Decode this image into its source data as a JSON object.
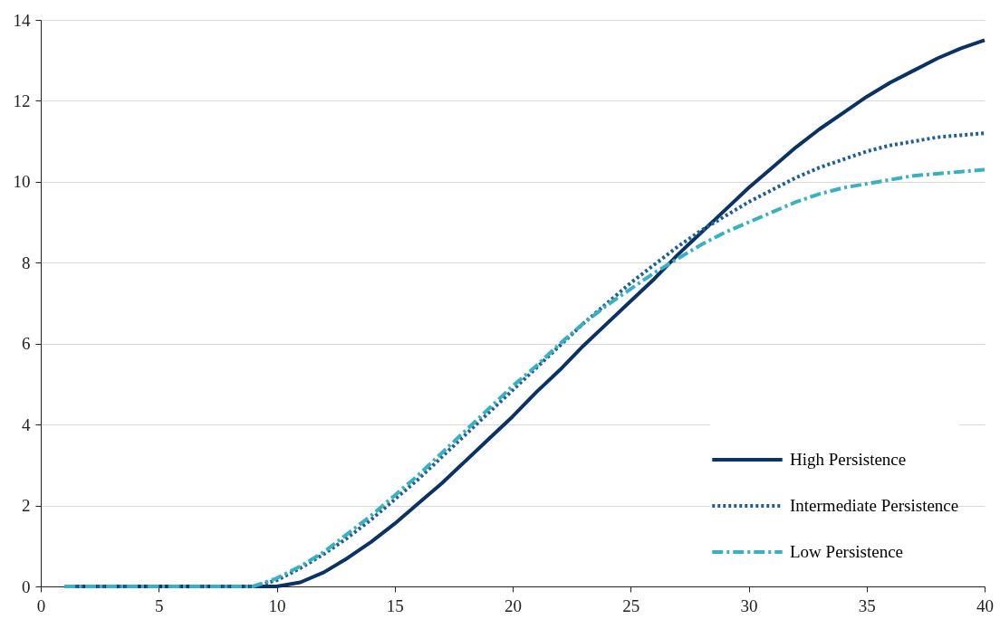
{
  "chart_data": {
    "type": "line",
    "x": [
      1,
      2,
      3,
      4,
      5,
      6,
      7,
      8,
      9,
      10,
      11,
      12,
      13,
      14,
      15,
      16,
      17,
      18,
      19,
      20,
      21,
      22,
      23,
      24,
      25,
      26,
      27,
      28,
      29,
      30,
      31,
      32,
      33,
      34,
      35,
      36,
      37,
      38,
      39,
      40
    ],
    "series": [
      {
        "name": "High Persistence",
        "color": "#0b3264",
        "line_style": "solid",
        "values": [
          0,
          0,
          0,
          0,
          0,
          0,
          0,
          0,
          0,
          0,
          0.1,
          0.35,
          0.7,
          1.1,
          1.55,
          2.05,
          2.55,
          3.1,
          3.65,
          4.2,
          4.8,
          5.35,
          5.95,
          6.5,
          7.05,
          7.6,
          8.2,
          8.75,
          9.3,
          9.85,
          10.35,
          10.85,
          11.3,
          11.7,
          12.1,
          12.45,
          12.75,
          13.05,
          13.3,
          13.5
        ]
      },
      {
        "name": "Intermediate Persistence",
        "color": "#1f5f99",
        "line_style": "dotted",
        "values": [
          0,
          0,
          0,
          0,
          0,
          0,
          0,
          0,
          0,
          0.15,
          0.45,
          0.8,
          1.2,
          1.65,
          2.15,
          2.65,
          3.2,
          3.75,
          4.3,
          4.85,
          5.4,
          5.95,
          6.5,
          7.0,
          7.5,
          7.95,
          8.4,
          8.8,
          9.15,
          9.5,
          9.8,
          10.1,
          10.35,
          10.55,
          10.75,
          10.9,
          11.0,
          11.1,
          11.15,
          11.2
        ]
      },
      {
        "name": "Low Persistence",
        "color": "#3ab0c3",
        "line_style": "dashed",
        "values": [
          0,
          0,
          0,
          0,
          0,
          0,
          0,
          0,
          0,
          0.2,
          0.5,
          0.85,
          1.3,
          1.75,
          2.25,
          2.75,
          3.3,
          3.85,
          4.4,
          4.95,
          5.45,
          6.0,
          6.5,
          6.95,
          7.35,
          7.75,
          8.1,
          8.45,
          8.75,
          9.0,
          9.25,
          9.5,
          9.7,
          9.85,
          9.95,
          10.05,
          10.15,
          10.2,
          10.25,
          10.3
        ]
      }
    ],
    "xlim": [
      0,
      40
    ],
    "xticks": [
      0,
      5,
      10,
      15,
      20,
      25,
      30,
      35,
      40
    ],
    "ylim": [
      0,
      14
    ],
    "yticks": [
      0,
      2,
      4,
      6,
      8,
      10,
      12,
      14
    ],
    "grid": "y",
    "legend": "bottom right"
  }
}
